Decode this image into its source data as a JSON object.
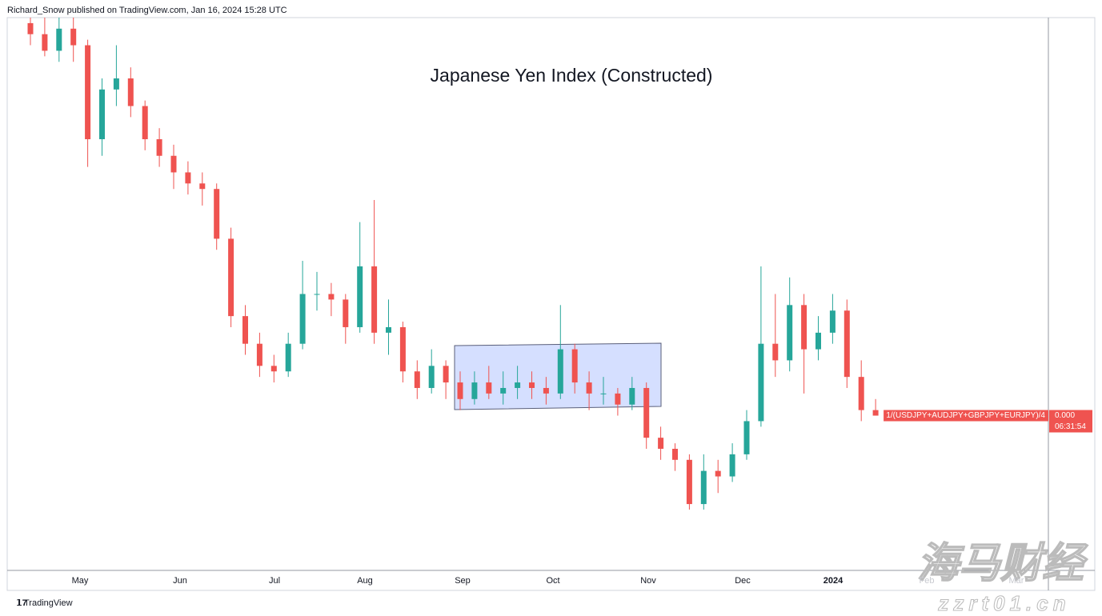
{
  "header": "Richard_Snow published on TradingView.com, Jan 16, 2024 15:28 UTC",
  "footer": "TradingView",
  "watermark": [
    "海马财经",
    "zzrt01.cn"
  ],
  "chart_data": {
    "type": "candlestick",
    "title": "Japanese Yen Index (Constructed)",
    "series_name": "1/(USDJPY+AUDJPY+GBPJPY+EURJPY)/4",
    "last_price_label": "0.000",
    "countdown": "06:31:54",
    "x_labels": [
      "May",
      "Jun",
      "Jul",
      "Aug",
      "Sep",
      "Oct",
      "Nov",
      "Dec",
      "2024",
      "Feb",
      "Mar"
    ],
    "up_color": "#26a69a",
    "down_color": "#ef5350",
    "ylim": [
      0,
      100
    ],
    "open": [
      99,
      97,
      94,
      98,
      95,
      78,
      87,
      89,
      84,
      78,
      75,
      72,
      70,
      69,
      60,
      46,
      41,
      37,
      36,
      41,
      50,
      50,
      49,
      44,
      55,
      43,
      44,
      36,
      33,
      37,
      34,
      31,
      34,
      32,
      33,
      34,
      33,
      32,
      40,
      34,
      32,
      32,
      30,
      33,
      24,
      22,
      20,
      12,
      18,
      17,
      21,
      27,
      41,
      38,
      48,
      40,
      43,
      47,
      35,
      29
    ],
    "high": [
      100,
      100,
      100,
      100,
      96,
      89,
      95,
      91,
      85,
      80,
      77,
      74,
      72,
      70,
      62,
      48,
      43,
      39,
      43,
      56,
      54,
      52,
      50,
      63,
      67,
      49,
      45,
      38,
      40,
      38,
      36,
      36,
      37,
      36,
      37,
      36,
      35,
      48,
      41,
      36,
      35,
      33,
      35,
      34,
      26,
      23,
      21,
      21,
      20,
      23,
      29,
      55,
      50,
      53,
      50,
      46,
      50,
      49,
      38,
      31
    ],
    "low": [
      95,
      93,
      92,
      92,
      73,
      75,
      84,
      82,
      76,
      73,
      69,
      68,
      66,
      58,
      44,
      39,
      35,
      34,
      35,
      40,
      47,
      46,
      41,
      43,
      41,
      39,
      34,
      31,
      32,
      31,
      29,
      30,
      31,
      30,
      31,
      31,
      30,
      31,
      32,
      29,
      30,
      28,
      29,
      22,
      20,
      18,
      11,
      11,
      14,
      16,
      20,
      26,
      35,
      36,
      32,
      38,
      41,
      33,
      27,
      28
    ],
    "close": [
      97,
      94,
      98,
      95,
      78,
      87,
      89,
      84,
      78,
      75,
      72,
      70,
      69,
      60,
      46,
      41,
      37,
      36,
      41,
      50,
      50,
      49,
      44,
      55,
      43,
      44,
      36,
      33,
      37,
      34,
      31,
      34,
      32,
      33,
      34,
      33,
      32,
      40,
      34,
      32,
      32,
      30,
      33,
      24,
      22,
      20,
      12,
      18,
      17,
      21,
      27,
      41,
      38,
      48,
      40,
      43,
      47,
      35,
      29,
      28
    ]
  }
}
